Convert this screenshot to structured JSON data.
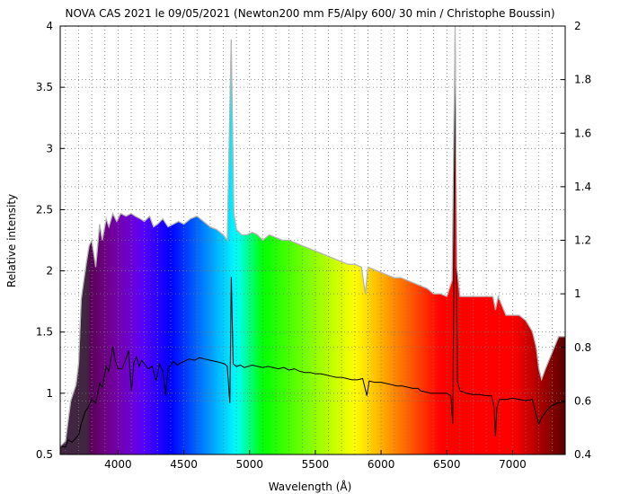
{
  "chart_data": {
    "type": "line",
    "title": "NOVA CAS 2021 le 09/05/2021 (Newton200 mm F5/Alpy 600/ 30 min / Christophe Boussin)",
    "xlabel": "Wavelength (Å)",
    "ylabel": "Relative intensity",
    "xlim": [
      3560,
      7400
    ],
    "ylim": [
      0.5,
      4
    ],
    "y2lim": [
      0.4,
      2
    ],
    "x_ticks": [
      4000,
      4500,
      5000,
      5500,
      6000,
      6500,
      7000
    ],
    "y_ticks": [
      0.5,
      1,
      1.5,
      2,
      2.5,
      3,
      3.5,
      4
    ],
    "y2_ticks": [
      0.4,
      0.6,
      0.8,
      1,
      1.2,
      1.4,
      1.6,
      1.8,
      2
    ],
    "grid": true,
    "background": "visible-spectrum rainbow under the gray spectrum envelope",
    "series": [
      {
        "axis": "right",
        "color": "#b4b4b4",
        "style": "filled-envelope",
        "points": [
          [
            3560,
            0.43
          ],
          [
            3600,
            0.45
          ],
          [
            3640,
            0.6
          ],
          [
            3680,
            0.66
          ],
          [
            3700,
            0.74
          ],
          [
            3720,
            0.98
          ],
          [
            3740,
            1.05
          ],
          [
            3760,
            1.12
          ],
          [
            3780,
            1.18
          ],
          [
            3800,
            1.2
          ],
          [
            3830,
            1.1
          ],
          [
            3860,
            1.26
          ],
          [
            3880,
            1.2
          ],
          [
            3910,
            1.28
          ],
          [
            3930,
            1.25
          ],
          [
            3960,
            1.3
          ],
          [
            3990,
            1.27
          ],
          [
            4020,
            1.3
          ],
          [
            4060,
            1.29
          ],
          [
            4100,
            1.3
          ],
          [
            4130,
            1.29
          ],
          [
            4170,
            1.28
          ],
          [
            4200,
            1.27
          ],
          [
            4240,
            1.29
          ],
          [
            4270,
            1.25
          ],
          [
            4300,
            1.26
          ],
          [
            4340,
            1.28
          ],
          [
            4380,
            1.25
          ],
          [
            4420,
            1.26
          ],
          [
            4460,
            1.27
          ],
          [
            4500,
            1.26
          ],
          [
            4550,
            1.28
          ],
          [
            4600,
            1.29
          ],
          [
            4650,
            1.27
          ],
          [
            4700,
            1.25
          ],
          [
            4750,
            1.24
          ],
          [
            4800,
            1.22
          ],
          [
            4830,
            1.2
          ],
          [
            4860,
            1.95
          ],
          [
            4880,
            1.3
          ],
          [
            4900,
            1.24
          ],
          [
            4940,
            1.22
          ],
          [
            4980,
            1.22
          ],
          [
            5020,
            1.23
          ],
          [
            5060,
            1.22
          ],
          [
            5100,
            1.2
          ],
          [
            5150,
            1.22
          ],
          [
            5200,
            1.21
          ],
          [
            5250,
            1.2
          ],
          [
            5300,
            1.2
          ],
          [
            5350,
            1.19
          ],
          [
            5400,
            1.18
          ],
          [
            5450,
            1.17
          ],
          [
            5500,
            1.16
          ],
          [
            5550,
            1.15
          ],
          [
            5600,
            1.14
          ],
          [
            5650,
            1.13
          ],
          [
            5700,
            1.12
          ],
          [
            5750,
            1.11
          ],
          [
            5800,
            1.11
          ],
          [
            5850,
            1.1
          ],
          [
            5880,
            1.0
          ],
          [
            5900,
            1.1
          ],
          [
            5950,
            1.09
          ],
          [
            6000,
            1.08
          ],
          [
            6050,
            1.07
          ],
          [
            6100,
            1.06
          ],
          [
            6150,
            1.06
          ],
          [
            6200,
            1.05
          ],
          [
            6250,
            1.04
          ],
          [
            6300,
            1.03
          ],
          [
            6350,
            1.02
          ],
          [
            6400,
            1.0
          ],
          [
            6450,
            1.0
          ],
          [
            6500,
            0.99
          ],
          [
            6540,
            1.05
          ],
          [
            6563,
            2.0
          ],
          [
            6575,
            1.1
          ],
          [
            6600,
            0.99
          ],
          [
            6650,
            0.99
          ],
          [
            6700,
            0.99
          ],
          [
            6750,
            0.99
          ],
          [
            6800,
            0.99
          ],
          [
            6850,
            0.99
          ],
          [
            6870,
            0.94
          ],
          [
            6890,
            0.99
          ],
          [
            6950,
            0.92
          ],
          [
            7000,
            0.92
          ],
          [
            7050,
            0.92
          ],
          [
            7100,
            0.9
          ],
          [
            7150,
            0.86
          ],
          [
            7180,
            0.8
          ],
          [
            7200,
            0.72
          ],
          [
            7220,
            0.68
          ],
          [
            7250,
            0.72
          ],
          [
            7300,
            0.78
          ],
          [
            7350,
            0.84
          ],
          [
            7400,
            0.84
          ]
        ]
      },
      {
        "axis": "left",
        "color": "#000000",
        "style": "line",
        "points": [
          [
            3560,
            0.57
          ],
          [
            3600,
            0.56
          ],
          [
            3620,
            0.62
          ],
          [
            3650,
            0.6
          ],
          [
            3700,
            0.66
          ],
          [
            3720,
            0.75
          ],
          [
            3750,
            0.85
          ],
          [
            3770,
            0.88
          ],
          [
            3800,
            0.95
          ],
          [
            3830,
            0.92
          ],
          [
            3860,
            1.08
          ],
          [
            3880,
            1.05
          ],
          [
            3910,
            1.22
          ],
          [
            3930,
            1.18
          ],
          [
            3960,
            1.38
          ],
          [
            3980,
            1.26
          ],
          [
            4000,
            1.2
          ],
          [
            4030,
            1.2
          ],
          [
            4060,
            1.28
          ],
          [
            4080,
            1.35
          ],
          [
            4101,
            1.02
          ],
          [
            4120,
            1.25
          ],
          [
            4140,
            1.3
          ],
          [
            4160,
            1.22
          ],
          [
            4180,
            1.27
          ],
          [
            4200,
            1.24
          ],
          [
            4230,
            1.2
          ],
          [
            4260,
            1.22
          ],
          [
            4290,
            1.1
          ],
          [
            4315,
            1.24
          ],
          [
            4340,
            1.18
          ],
          [
            4361,
            0.98
          ],
          [
            4380,
            1.2
          ],
          [
            4420,
            1.26
          ],
          [
            4450,
            1.23
          ],
          [
            4480,
            1.25
          ],
          [
            4500,
            1.26
          ],
          [
            4540,
            1.28
          ],
          [
            4580,
            1.27
          ],
          [
            4620,
            1.29
          ],
          [
            4660,
            1.28
          ],
          [
            4700,
            1.27
          ],
          [
            4740,
            1.26
          ],
          [
            4780,
            1.25
          ],
          [
            4810,
            1.24
          ],
          [
            4830,
            1.22
          ],
          [
            4850,
            0.92
          ],
          [
            4861,
            1.95
          ],
          [
            4875,
            1.24
          ],
          [
            4900,
            1.22
          ],
          [
            4930,
            1.23
          ],
          [
            4960,
            1.21
          ],
          [
            4990,
            1.22
          ],
          [
            5020,
            1.23
          ],
          [
            5060,
            1.22
          ],
          [
            5100,
            1.21
          ],
          [
            5140,
            1.22
          ],
          [
            5180,
            1.21
          ],
          [
            5220,
            1.2
          ],
          [
            5260,
            1.21
          ],
          [
            5300,
            1.19
          ],
          [
            5340,
            1.2
          ],
          [
            5380,
            1.18
          ],
          [
            5420,
            1.17
          ],
          [
            5460,
            1.17
          ],
          [
            5500,
            1.16
          ],
          [
            5540,
            1.16
          ],
          [
            5580,
            1.15
          ],
          [
            5620,
            1.14
          ],
          [
            5660,
            1.13
          ],
          [
            5700,
            1.13
          ],
          [
            5740,
            1.12
          ],
          [
            5780,
            1.11
          ],
          [
            5820,
            1.11
          ],
          [
            5860,
            1.12
          ],
          [
            5892,
            0.98
          ],
          [
            5910,
            1.1
          ],
          [
            5950,
            1.09
          ],
          [
            6000,
            1.09
          ],
          [
            6040,
            1.08
          ],
          [
            6080,
            1.07
          ],
          [
            6120,
            1.06
          ],
          [
            6160,
            1.06
          ],
          [
            6200,
            1.05
          ],
          [
            6240,
            1.04
          ],
          [
            6280,
            1.04
          ],
          [
            6300,
            1.02
          ],
          [
            6340,
            1.01
          ],
          [
            6380,
            1.0
          ],
          [
            6420,
            1.0
          ],
          [
            6460,
            1.0
          ],
          [
            6500,
            1.0
          ],
          [
            6530,
            0.98
          ],
          [
            6545,
            0.75
          ],
          [
            6555,
            2.3
          ],
          [
            6563,
            3.85
          ],
          [
            6570,
            2.4
          ],
          [
            6580,
            1.1
          ],
          [
            6600,
            1.02
          ],
          [
            6650,
            1.0
          ],
          [
            6700,
            0.99
          ],
          [
            6750,
            0.99
          ],
          [
            6800,
            0.98
          ],
          [
            6840,
            0.98
          ],
          [
            6860,
            0.88
          ],
          [
            6870,
            0.65
          ],
          [
            6880,
            0.88
          ],
          [
            6900,
            0.95
          ],
          [
            6950,
            0.95
          ],
          [
            7000,
            0.96
          ],
          [
            7050,
            0.95
          ],
          [
            7100,
            0.94
          ],
          [
            7150,
            0.95
          ],
          [
            7180,
            0.82
          ],
          [
            7200,
            0.75
          ],
          [
            7220,
            0.8
          ],
          [
            7260,
            0.86
          ],
          [
            7300,
            0.9
          ],
          [
            7340,
            0.92
          ],
          [
            7400,
            0.93
          ]
        ]
      }
    ]
  }
}
